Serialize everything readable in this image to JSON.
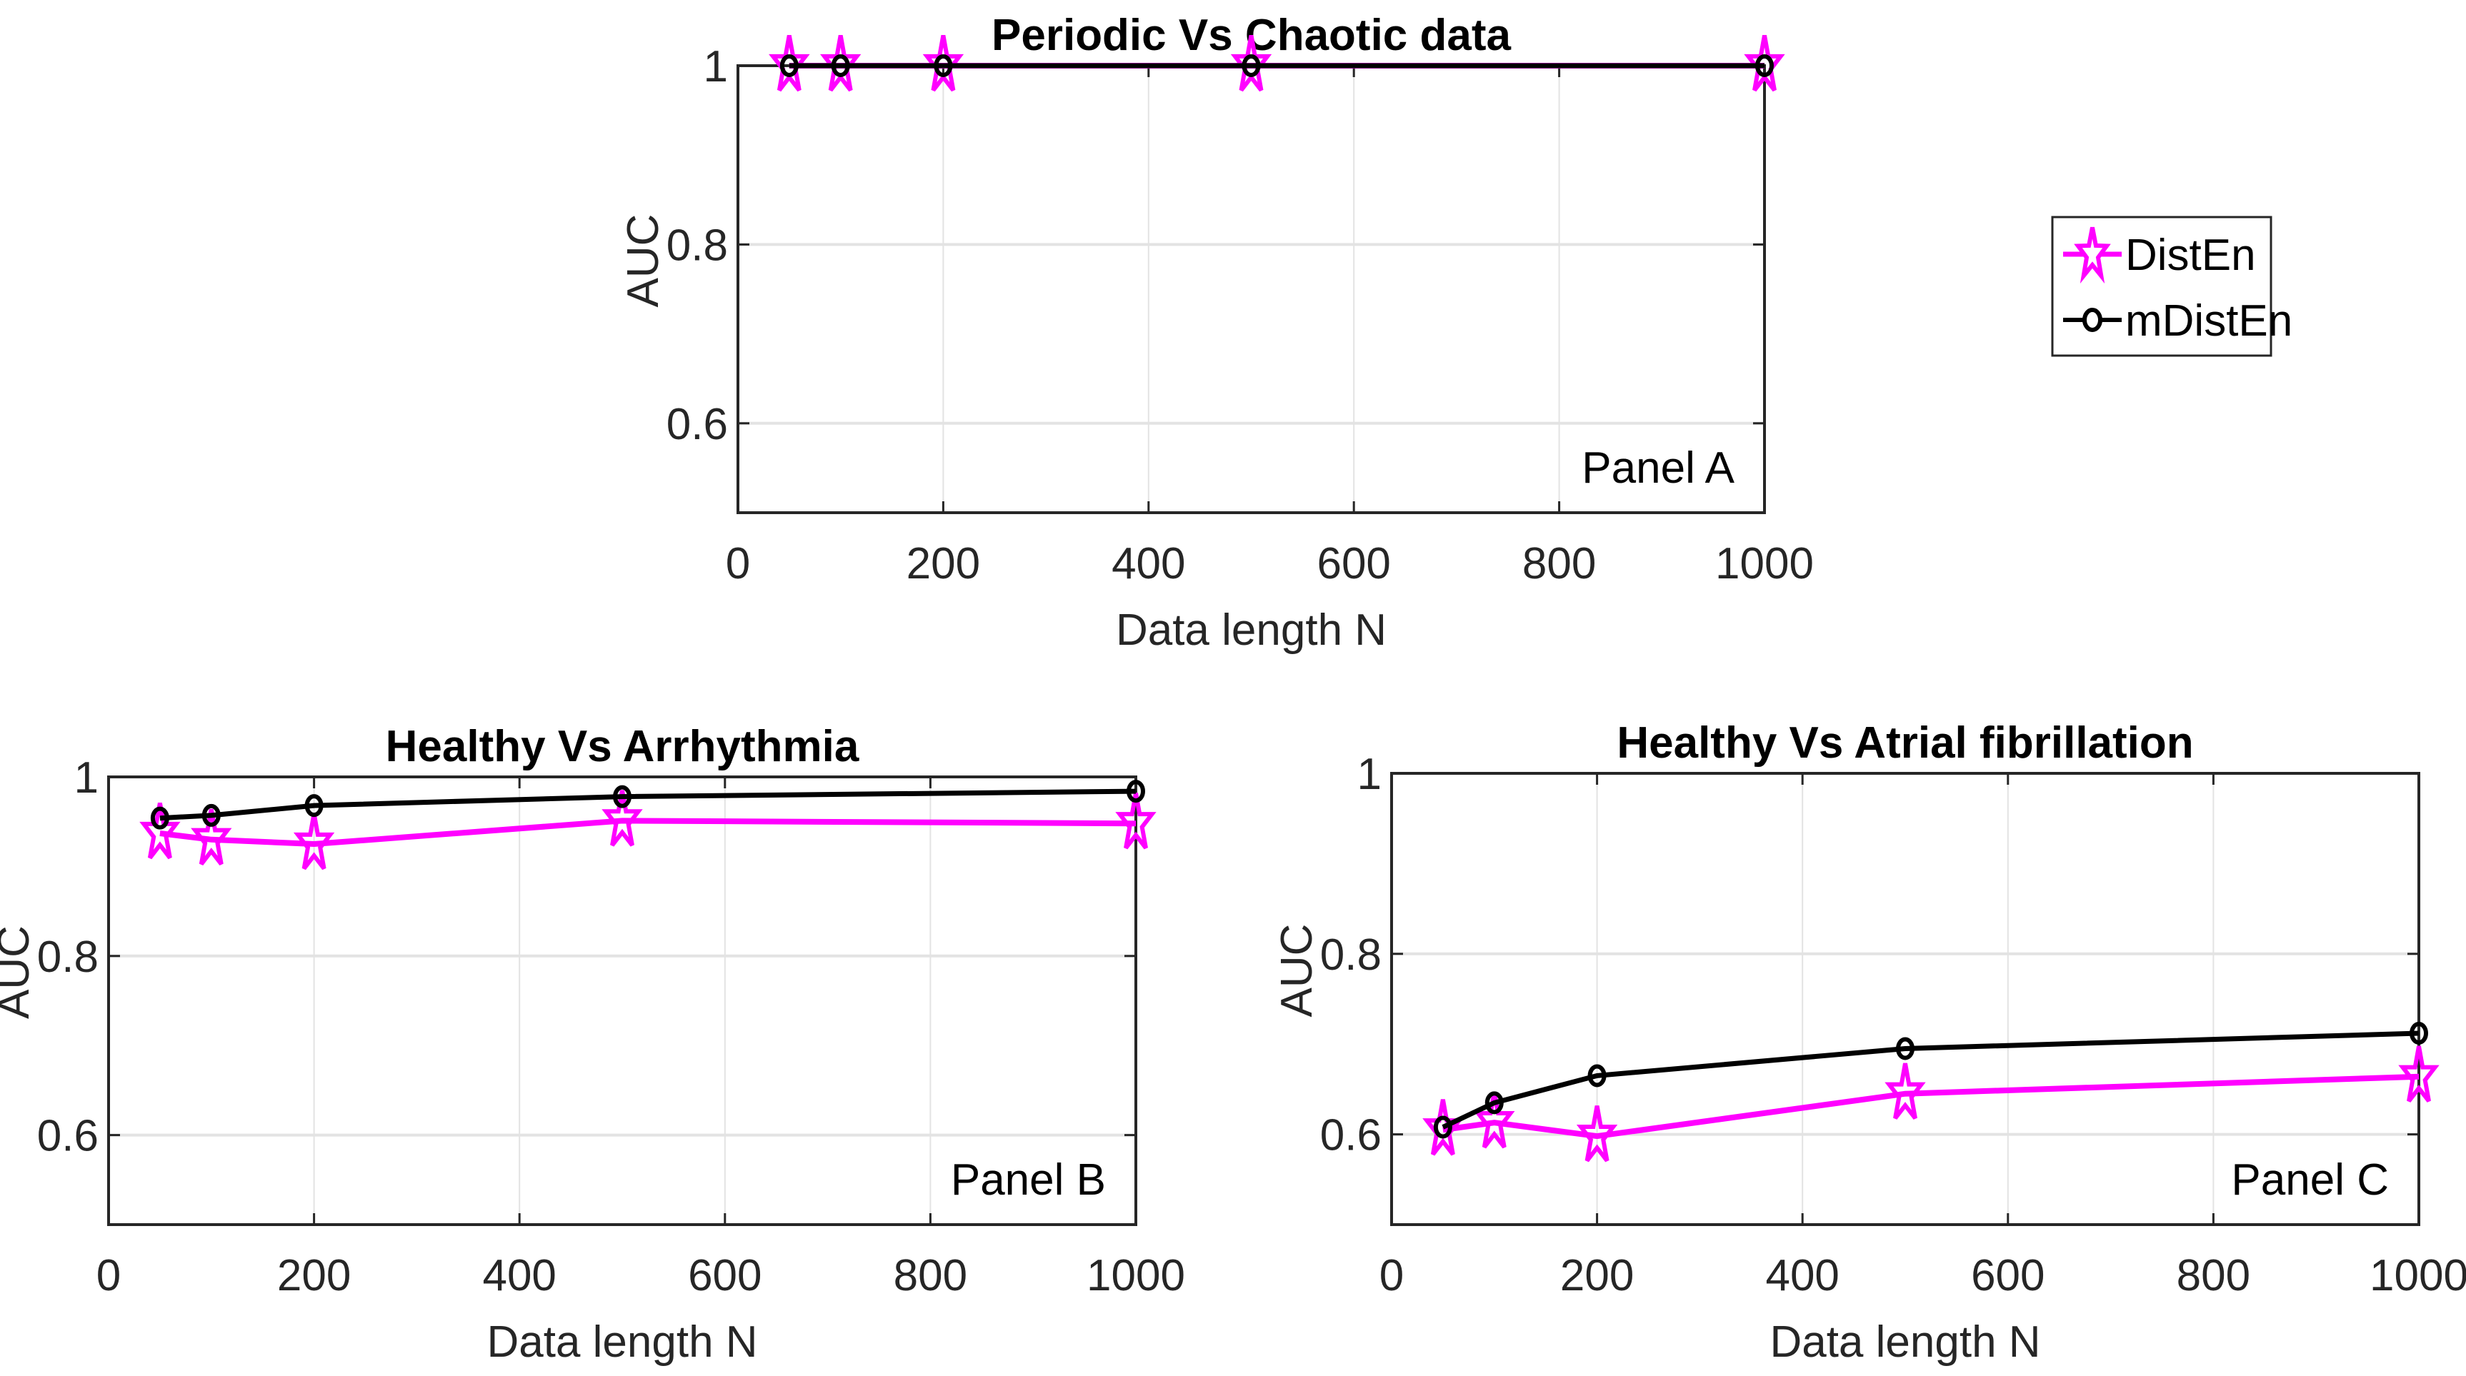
{
  "chart_data": [
    {
      "type": "line",
      "title": "Periodic Vs Chaotic data",
      "xlabel": "Data length N",
      "ylabel": "AUC",
      "annotation": "Panel A",
      "xlim": [
        0,
        1000
      ],
      "ylim": [
        0.5,
        1
      ],
      "xticks": [
        "0",
        "200",
        "400",
        "600",
        "800",
        "1000"
      ],
      "yticks": [
        "0.6",
        "0.8",
        "1"
      ],
      "grid": true,
      "x": [
        50,
        100,
        200,
        500,
        1000
      ],
      "series": [
        {
          "name": "DistEn",
          "values": [
            1,
            1,
            1,
            1,
            1
          ]
        },
        {
          "name": "mDistEn",
          "values": [
            1,
            1,
            1,
            1,
            1
          ]
        }
      ]
    },
    {
      "type": "line",
      "title": "Healthy Vs Arrhythmia",
      "xlabel": "Data length N",
      "ylabel": "AUC",
      "annotation": "Panel B",
      "xlim": [
        0,
        1000
      ],
      "ylim": [
        0.5,
        1
      ],
      "xticks": [
        "0",
        "200",
        "400",
        "600",
        "800",
        "1000"
      ],
      "yticks": [
        "0.6",
        "0.8",
        "1"
      ],
      "grid": true,
      "x": [
        50,
        100,
        200,
        500,
        1000
      ],
      "series": [
        {
          "name": "DistEn",
          "values": [
            0.937,
            0.93,
            0.925,
            0.951,
            0.948
          ]
        },
        {
          "name": "mDistEn",
          "values": [
            0.954,
            0.957,
            0.968,
            0.978,
            0.984
          ]
        }
      ]
    },
    {
      "type": "line",
      "title": "Healthy Vs Atrial fibrillation",
      "xlabel": "Data length N",
      "ylabel": "AUC",
      "annotation": "Panel C",
      "xlim": [
        0,
        1000
      ],
      "ylim": [
        0.5,
        1
      ],
      "xticks": [
        "0",
        "200",
        "400",
        "600",
        "800",
        "1000"
      ],
      "yticks": [
        "0.6",
        "0.8",
        "1"
      ],
      "grid": true,
      "x": [
        50,
        100,
        200,
        500,
        1000
      ],
      "series": [
        {
          "name": "DistEn",
          "values": [
            0.605,
            0.613,
            0.598,
            0.645,
            0.664
          ]
        },
        {
          "name": "mDistEn",
          "values": [
            0.608,
            0.635,
            0.665,
            0.695,
            0.712
          ]
        }
      ]
    }
  ],
  "legend": {
    "placement": "right",
    "items": [
      {
        "label": "DistEn",
        "color": "#ff00ff",
        "marker": "star-icon"
      },
      {
        "label": "mDistEn",
        "color": "#000000",
        "marker": "circle-icon"
      }
    ]
  }
}
